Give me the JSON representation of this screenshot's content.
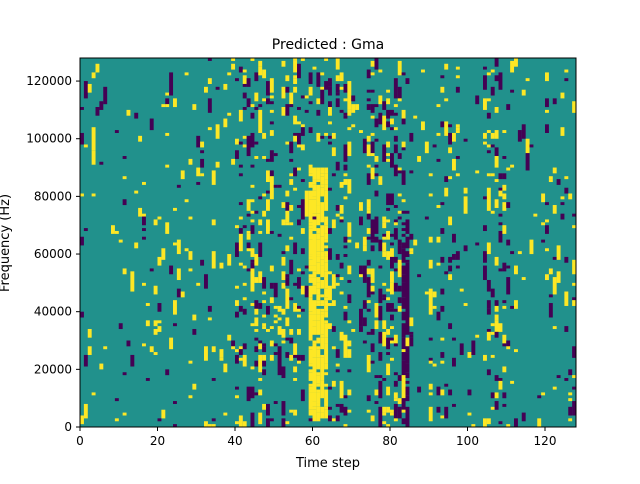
{
  "chart_data": {
    "type": "heatmap",
    "title": "Predicted : Gma",
    "xlabel": "Time step",
    "ylabel": "Frequency (Hz)",
    "xlim": [
      0,
      128
    ],
    "ylim": [
      0,
      128000
    ],
    "x_ticks": [
      0,
      20,
      40,
      60,
      80,
      100,
      120
    ],
    "y_ticks": [
      0,
      20000,
      40000,
      60000,
      80000,
      100000,
      120000
    ],
    "grid": false,
    "legend": "none",
    "colormap": "viridis",
    "colors": {
      "background_cell": "#21918c",
      "high_cell": "#fde725",
      "low_cell": "#440154"
    },
    "dominant_value": "mid",
    "features": {
      "high_band_x": [
        59,
        64
      ],
      "high_band_y": [
        4000,
        90000
      ],
      "low_band_x": [
        83,
        85
      ],
      "low_band_y": [
        4000,
        72000
      ]
    }
  }
}
